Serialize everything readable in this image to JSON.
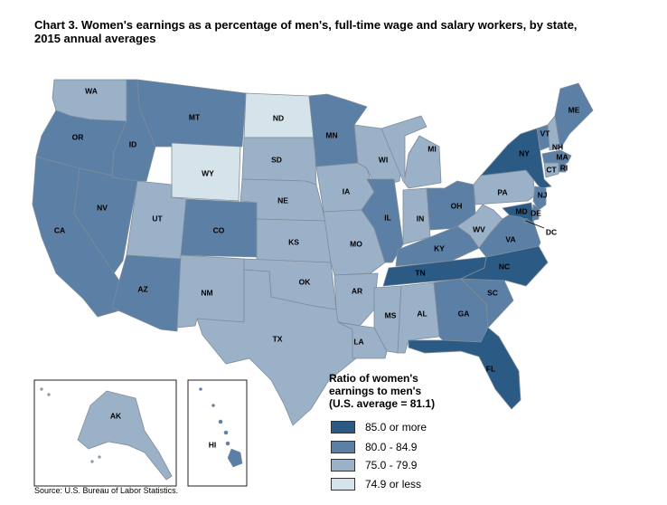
{
  "title_lines": [
    "Chart 3. Women's earnings as a percentage of men's, full-time wage and salary workers, by state,",
    "2015 annual averages"
  ],
  "legend": {
    "title_lines": [
      "Ratio of women's",
      "earnings to men's",
      "(U.S. average = 81.1)"
    ],
    "items": [
      {
        "label": "85.0 or more",
        "color": "#2b5a84",
        "category": "c1"
      },
      {
        "label": "80.0 - 84.9",
        "color": "#5b7fa5",
        "category": "c2"
      },
      {
        "label": "75.0 - 79.9",
        "color": "#9ab1c8",
        "category": "c3"
      },
      {
        "label": "74.9 or less",
        "color": "#d5e4ea",
        "category": "c4"
      }
    ]
  },
  "source": "Source: U.S. Bureau of Labor Statistics.",
  "states": [
    {
      "abbr": "WA",
      "category": "c3"
    },
    {
      "abbr": "OR",
      "category": "c2"
    },
    {
      "abbr": "CA",
      "category": "c2"
    },
    {
      "abbr": "NV",
      "category": "c2"
    },
    {
      "abbr": "ID",
      "category": "c2"
    },
    {
      "abbr": "MT",
      "category": "c2"
    },
    {
      "abbr": "WY",
      "category": "c4"
    },
    {
      "abbr": "UT",
      "category": "c3"
    },
    {
      "abbr": "AZ",
      "category": "c2"
    },
    {
      "abbr": "CO",
      "category": "c2"
    },
    {
      "abbr": "NM",
      "category": "c3"
    },
    {
      "abbr": "ND",
      "category": "c4"
    },
    {
      "abbr": "SD",
      "category": "c3"
    },
    {
      "abbr": "NE",
      "category": "c3"
    },
    {
      "abbr": "KS",
      "category": "c3"
    },
    {
      "abbr": "OK",
      "category": "c3"
    },
    {
      "abbr": "TX",
      "category": "c3"
    },
    {
      "abbr": "MN",
      "category": "c2"
    },
    {
      "abbr": "IA",
      "category": "c3"
    },
    {
      "abbr": "MO",
      "category": "c3"
    },
    {
      "abbr": "AR",
      "category": "c3"
    },
    {
      "abbr": "LA",
      "category": "c3"
    },
    {
      "abbr": "WI",
      "category": "c3"
    },
    {
      "abbr": "IL",
      "category": "c2"
    },
    {
      "abbr": "MI",
      "category": "c3"
    },
    {
      "abbr": "IN",
      "category": "c3"
    },
    {
      "abbr": "OH",
      "category": "c2"
    },
    {
      "abbr": "KY",
      "category": "c2"
    },
    {
      "abbr": "TN",
      "category": "c1"
    },
    {
      "abbr": "MS",
      "category": "c3"
    },
    {
      "abbr": "AL",
      "category": "c3"
    },
    {
      "abbr": "GA",
      "category": "c2"
    },
    {
      "abbr": "FL",
      "category": "c1"
    },
    {
      "abbr": "SC",
      "category": "c2"
    },
    {
      "abbr": "NC",
      "category": "c1"
    },
    {
      "abbr": "VA",
      "category": "c2"
    },
    {
      "abbr": "WV",
      "category": "c3"
    },
    {
      "abbr": "PA",
      "category": "c3"
    },
    {
      "abbr": "NY",
      "category": "c1"
    },
    {
      "abbr": "VT",
      "category": "c2"
    },
    {
      "abbr": "NH",
      "category": "c3"
    },
    {
      "abbr": "ME",
      "category": "c2"
    },
    {
      "abbr": "MA",
      "category": "c2"
    },
    {
      "abbr": "RI",
      "category": "c2"
    },
    {
      "abbr": "CT",
      "category": "c3"
    },
    {
      "abbr": "NJ",
      "category": "c2"
    },
    {
      "abbr": "DE",
      "category": "c2"
    },
    {
      "abbr": "MD",
      "category": "c1"
    },
    {
      "abbr": "DC",
      "category": "c2"
    },
    {
      "abbr": "AK",
      "category": "c3"
    },
    {
      "abbr": "HI",
      "category": "c2"
    }
  ]
}
